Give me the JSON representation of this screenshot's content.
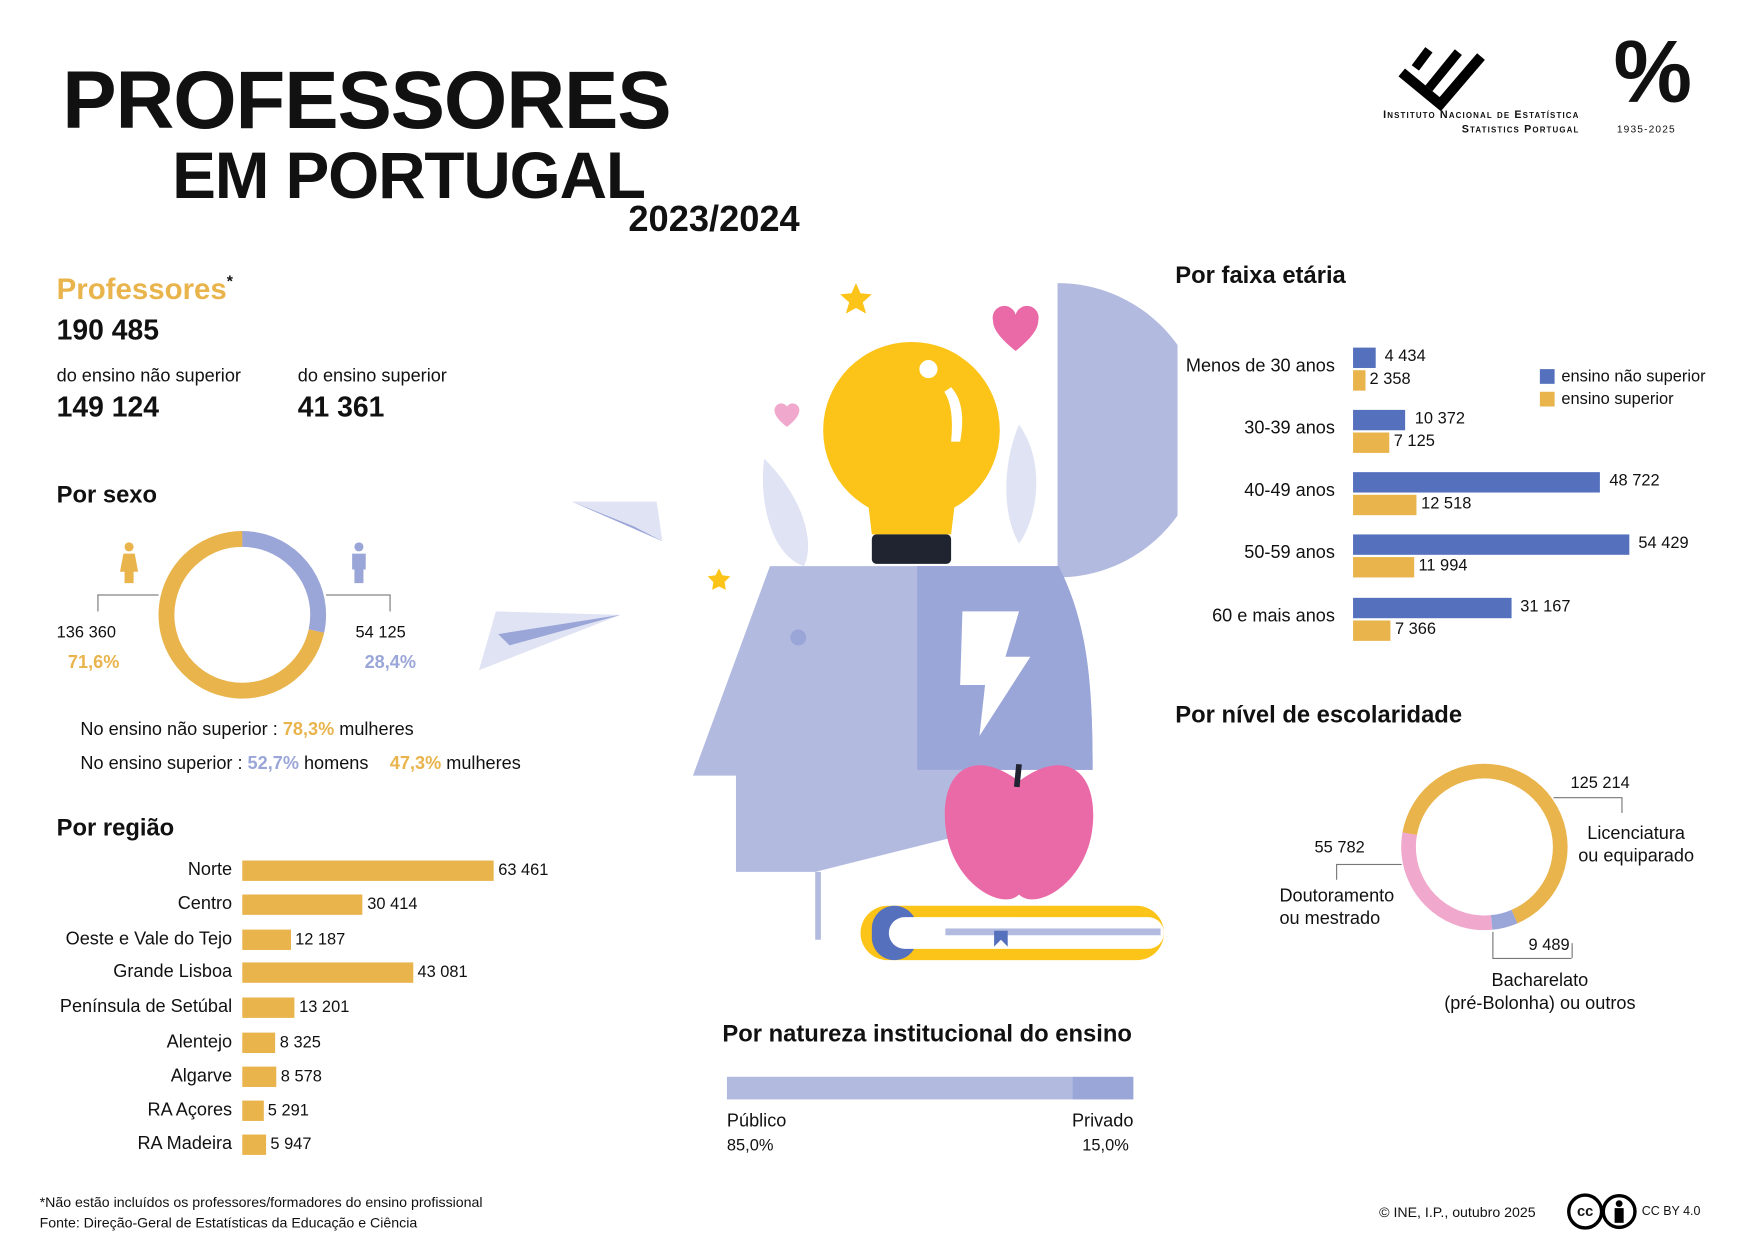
{
  "header": {
    "title1": "PROFESSORES",
    "title2": "EM PORTUGAL",
    "period": "2023/2024",
    "logo": {
      "name": "Instituto Nacional de Estatística",
      "sub": "Statistics Portugal",
      "anniv_symbol": "%",
      "anniv_years": "1935-2025"
    }
  },
  "totals": {
    "label": "Professores",
    "asterisk": "*",
    "total": "190 485",
    "nonsup_label": "do ensino não superior",
    "nonsup_value": "149 124",
    "sup_label": "do ensino superior",
    "sup_value": "41 361"
  },
  "colors": {
    "orange": "#e9b44c",
    "lavender": "#9ba6d8",
    "blue": "#5570bd",
    "pink": "#f0a8cc",
    "light": "#b3badf"
  },
  "chart_data": [
    {
      "type": "pie",
      "title": "Por sexo",
      "labels": [
        "Mulheres",
        "Homens"
      ],
      "values": [
        136360,
        54125
      ],
      "value_labels": [
        "136 360",
        "54 125"
      ],
      "percent_labels": [
        "71,6%",
        "28,4%"
      ],
      "notes": {
        "line1_prefix": "No ensino não superior :",
        "line1_pct": "78,3%",
        "line1_suffix": "mulheres",
        "line2_prefix": "No ensino superior :",
        "line2_pct1": "52,7%",
        "line2_word1": "homens",
        "line2_pct2": "47,3%",
        "line2_word2": "mulheres"
      }
    },
    {
      "type": "bar",
      "title": "Por região",
      "orientation": "horizontal",
      "categories": [
        "Norte",
        "Centro",
        "Oeste e Vale do Tejo",
        "Grande Lisboa",
        "Península de Setúbal",
        "Alentejo",
        "Algarve",
        "RA Açores",
        "RA Madeira"
      ],
      "values": [
        63461,
        30414,
        12187,
        43081,
        13201,
        8325,
        8578,
        5291,
        5947
      ],
      "value_labels": [
        "63 461",
        "30 414",
        "12 187",
        "43 081",
        "13 201",
        "8 325",
        "8 578",
        "5 291",
        "5 947"
      ]
    },
    {
      "type": "bar",
      "title": "Por natureza institucional do ensino",
      "orientation": "stacked-horizontal",
      "categories": [
        "Público",
        "Privado"
      ],
      "values": [
        85.0,
        15.0
      ],
      "value_labels": [
        "85,0%",
        "15,0%"
      ]
    },
    {
      "type": "bar",
      "title": "Por faixa etária",
      "orientation": "horizontal",
      "categories": [
        "Menos de 30 anos",
        "30-39 anos",
        "40-49 anos",
        "50-59 anos",
        "60 e mais anos"
      ],
      "series": [
        {
          "name": "ensino não superior",
          "values": [
            4434,
            10372,
            48722,
            54429,
            31167
          ],
          "value_labels": [
            "4 434",
            "10 372",
            "48 722",
            "54 429",
            "31 167"
          ]
        },
        {
          "name": "ensino superior",
          "values": [
            2358,
            7125,
            12518,
            11994,
            7366
          ],
          "value_labels": [
            "2 358",
            "7 125",
            "12 518",
            "11 994",
            "7 366"
          ]
        }
      ],
      "legend": "top-right"
    },
    {
      "type": "pie",
      "title": "Por nível de escolaridade",
      "labels": [
        "Licenciatura ou equiparado",
        "Bacharelato (pré-Bolonha) ou outros",
        "Doutoramento ou mestrado"
      ],
      "label_lines": [
        [
          "Licenciatura",
          "ou equiparado"
        ],
        [
          "Bacharelato",
          "(pré-Bolonha) ou outros"
        ],
        [
          "Doutoramento",
          "ou mestrado"
        ]
      ],
      "values": [
        125214,
        9489,
        55782
      ],
      "value_labels": [
        "125 214",
        "9 489",
        "55 782"
      ]
    }
  ],
  "footer": {
    "note": "*Não estão incluídos os professores/formadores do ensino profissional",
    "source": "Fonte: Direção-Geral de Estatísticas da Educação e Ciência",
    "copyright": "© INE, I.P., outubro 2025",
    "cc_symbol": "cc",
    "license": "CC BY 4.0"
  }
}
